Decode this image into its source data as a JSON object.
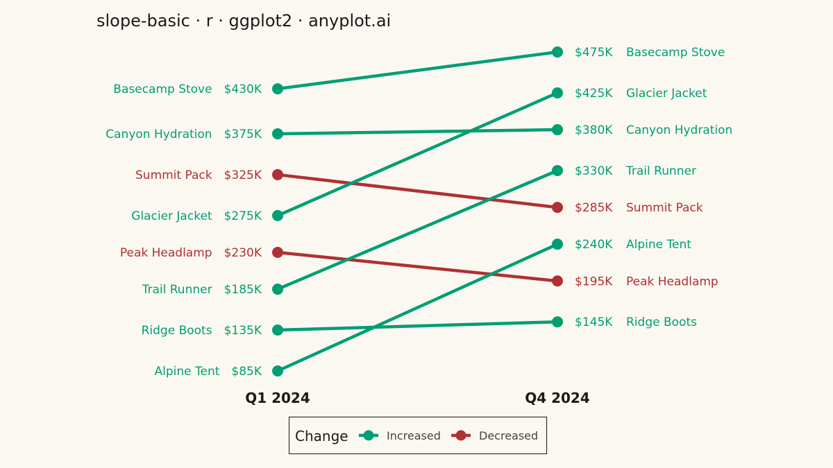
{
  "colors": {
    "increased": "#009E73",
    "decreased": "#B03033",
    "background": "#FAF8F1"
  },
  "chart_data": {
    "type": "line",
    "subtype": "slope",
    "title": "slope-basic · r · ggplot2 · anyplot.ai",
    "x": [
      "Q1 2024",
      "Q4 2024"
    ],
    "ylim": [
      85,
      475
    ],
    "grid": false,
    "legend": {
      "title": "Change",
      "position": "bottom",
      "entries": [
        {
          "label": "Increased",
          "color": "#009E73"
        },
        {
          "label": "Decreased",
          "color": "#B03033"
        }
      ]
    },
    "series": [
      {
        "name": "Basecamp Stove",
        "values": [
          430,
          475
        ],
        "start_label": "$430K",
        "end_label": "$475K",
        "change": "Increased"
      },
      {
        "name": "Canyon Hydration",
        "values": [
          375,
          380
        ],
        "start_label": "$375K",
        "end_label": "$380K",
        "change": "Increased"
      },
      {
        "name": "Summit Pack",
        "values": [
          325,
          285
        ],
        "start_label": "$325K",
        "end_label": "$285K",
        "change": "Decreased"
      },
      {
        "name": "Glacier Jacket",
        "values": [
          275,
          425
        ],
        "start_label": "$275K",
        "end_label": "$425K",
        "change": "Increased"
      },
      {
        "name": "Peak Headlamp",
        "values": [
          230,
          195
        ],
        "start_label": "$230K",
        "end_label": "$195K",
        "change": "Decreased"
      },
      {
        "name": "Trail Runner",
        "values": [
          185,
          330
        ],
        "start_label": "$185K",
        "end_label": "$330K",
        "change": "Increased"
      },
      {
        "name": "Ridge Boots",
        "values": [
          135,
          145
        ],
        "start_label": "$135K",
        "end_label": "$145K",
        "change": "Increased"
      },
      {
        "name": "Alpine Tent",
        "values": [
          85,
          240
        ],
        "start_label": "$85K",
        "end_label": "$240K",
        "change": "Increased"
      }
    ]
  }
}
